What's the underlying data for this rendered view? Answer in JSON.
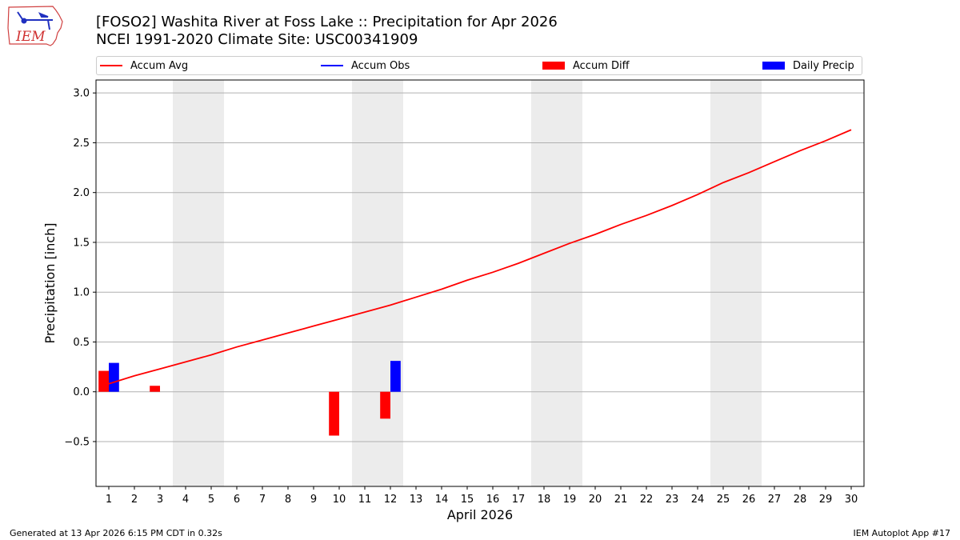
{
  "header": {
    "title_line1": "[FOSO2] Washita River at Foss Lake :: Precipitation for Apr 2026",
    "title_line2": "NCEI 1991-2020 Climate Site: USC00341909",
    "logo_text": "IEM"
  },
  "legend": {
    "items": [
      {
        "label": "Accum Avg",
        "kind": "line",
        "color": "#ff0000"
      },
      {
        "label": "Accum Obs",
        "kind": "line",
        "color": "#0000ff"
      },
      {
        "label": "Accum Diff",
        "kind": "bar",
        "color": "#ff0000"
      },
      {
        "label": "Daily Precip",
        "kind": "bar",
        "color": "#0000ff"
      }
    ]
  },
  "footer": {
    "left": "Generated at 13 Apr 2026 6:15 PM CDT in 0.32s",
    "right": "IEM Autoplot App #17"
  },
  "chart_data": {
    "type": "bar",
    "xlabel": "April 2026",
    "ylabel": "Precipitation [inch]",
    "xlim": [
      0.5,
      30.5
    ],
    "ylim": [
      -0.95,
      3.13
    ],
    "yticks": [
      -0.5,
      0.0,
      0.5,
      1.0,
      1.5,
      2.0,
      2.5,
      3.0
    ],
    "ytick_labels": [
      "−0.5",
      "0.0",
      "0.5",
      "1.0",
      "1.5",
      "2.0",
      "2.5",
      "3.0"
    ],
    "x": [
      1,
      2,
      3,
      4,
      5,
      6,
      7,
      8,
      9,
      10,
      11,
      12,
      13,
      14,
      15,
      16,
      17,
      18,
      19,
      20,
      21,
      22,
      23,
      24,
      25,
      26,
      27,
      28,
      29,
      30
    ],
    "grid": "horizontal",
    "weekend_shading": [
      [
        3.5,
        5.5
      ],
      [
        10.5,
        12.5
      ],
      [
        17.5,
        19.5
      ],
      [
        24.5,
        26.5
      ]
    ],
    "shade_color": "#ececec",
    "series": [
      {
        "name": "Accum Avg",
        "kind": "line",
        "color": "#ff0000",
        "values": [
          0.08,
          0.16,
          0.23,
          0.3,
          0.37,
          0.45,
          0.52,
          0.59,
          0.66,
          0.73,
          0.8,
          0.87,
          0.95,
          1.03,
          1.12,
          1.2,
          1.29,
          1.39,
          1.49,
          1.58,
          1.68,
          1.77,
          1.87,
          1.98,
          2.1,
          2.2,
          2.31,
          2.42,
          2.52,
          2.63
        ]
      },
      {
        "name": "Accum Diff",
        "kind": "bar",
        "color": "#ff0000",
        "values": [
          0.21,
          null,
          0.06,
          null,
          null,
          null,
          null,
          null,
          null,
          -0.44,
          null,
          -0.27,
          null,
          null,
          null,
          null,
          null,
          null,
          null,
          null,
          null,
          null,
          null,
          null,
          null,
          null,
          null,
          null,
          null,
          null
        ]
      },
      {
        "name": "Daily Precip",
        "kind": "bar",
        "color": "#0000ff",
        "values": [
          0.29,
          null,
          null,
          null,
          null,
          null,
          null,
          null,
          null,
          null,
          null,
          0.31,
          null,
          null,
          null,
          null,
          null,
          null,
          null,
          null,
          null,
          null,
          null,
          null,
          null,
          null,
          null,
          null,
          null,
          null
        ]
      }
    ]
  }
}
